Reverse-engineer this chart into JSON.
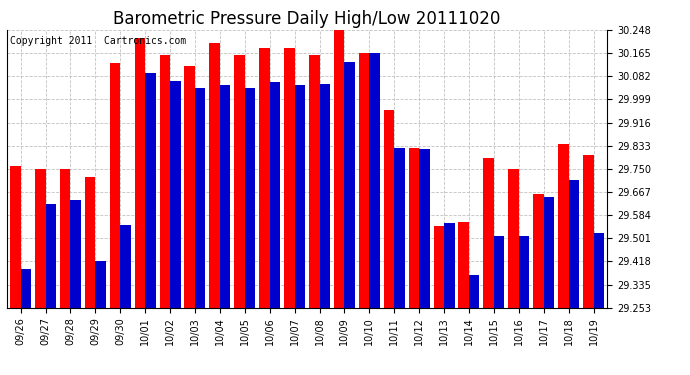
{
  "title": "Barometric Pressure Daily High/Low 20111020",
  "copyright": "Copyright 2011  Cartronics.com",
  "categories": [
    "09/26",
    "09/27",
    "09/28",
    "09/29",
    "09/30",
    "10/01",
    "10/02",
    "10/03",
    "10/04",
    "10/05",
    "10/06",
    "10/07",
    "10/08",
    "10/09",
    "10/10",
    "10/11",
    "10/12",
    "10/13",
    "10/14",
    "10/15",
    "10/16",
    "10/17",
    "10/18",
    "10/19"
  ],
  "highs": [
    29.76,
    29.75,
    29.75,
    29.72,
    30.13,
    30.22,
    30.16,
    30.12,
    30.2,
    30.16,
    30.185,
    30.185,
    30.16,
    30.248,
    30.165,
    29.96,
    29.825,
    29.545,
    29.56,
    29.79,
    29.75,
    29.66,
    29.84,
    29.8
  ],
  "lows": [
    29.39,
    29.625,
    29.64,
    29.42,
    29.55,
    30.095,
    30.065,
    30.04,
    30.05,
    30.04,
    30.06,
    30.05,
    30.055,
    30.135,
    30.165,
    29.825,
    29.82,
    29.555,
    29.37,
    29.51,
    29.51,
    29.65,
    29.71,
    29.52
  ],
  "ylim_min": 29.253,
  "ylim_max": 30.248,
  "yticks": [
    29.253,
    29.335,
    29.418,
    29.501,
    29.584,
    29.667,
    29.75,
    29.833,
    29.916,
    29.999,
    30.082,
    30.165,
    30.248
  ],
  "high_color": "#ff0000",
  "low_color": "#0000cc",
  "bg_color": "#ffffff",
  "grid_color": "#bbbbbb",
  "title_fontsize": 12,
  "copyright_fontsize": 7,
  "tick_fontsize": 7,
  "bar_width": 0.42
}
